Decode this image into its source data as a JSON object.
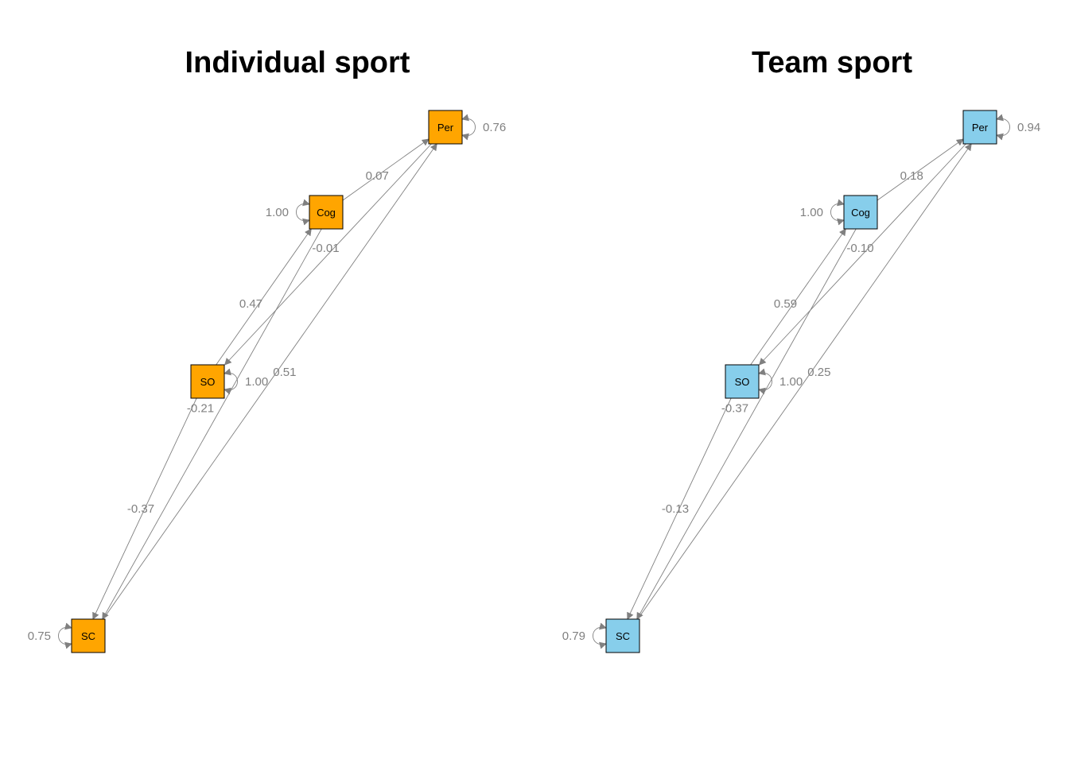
{
  "panels": [
    {
      "title": "Individual sport",
      "node_color": "#FFA500",
      "nodes": {
        "Per": "Per",
        "Cog": "Cog",
        "SO": "SO",
        "SC": "SC"
      },
      "paths": [
        {
          "from": "Cog",
          "to": "Per",
          "label": "0.07"
        },
        {
          "from": "Per",
          "to": "SO",
          "label": "-0.01"
        },
        {
          "from": "SO",
          "to": "Cog",
          "label": "0.47"
        },
        {
          "from": "SC",
          "to": "Per",
          "label": "0.51"
        },
        {
          "from": "Cog",
          "to": "SC",
          "label": "-0.21"
        },
        {
          "from": "SO",
          "to": "SC",
          "label": "-0.37"
        }
      ],
      "variances": {
        "Per": "0.76",
        "Cog": "1.00",
        "SO": "1.00",
        "SC": "0.75"
      }
    },
    {
      "title": "Team sport",
      "node_color": "#87CEEB",
      "nodes": {
        "Per": "Per",
        "Cog": "Cog",
        "SO": "SO",
        "SC": "SC"
      },
      "paths": [
        {
          "from": "Cog",
          "to": "Per",
          "label": "0.18"
        },
        {
          "from": "Per",
          "to": "SO",
          "label": "-0.10"
        },
        {
          "from": "SO",
          "to": "Cog",
          "label": "0.59"
        },
        {
          "from": "SC",
          "to": "Per",
          "label": "0.25"
        },
        {
          "from": "Cog",
          "to": "SC",
          "label": "-0.37"
        },
        {
          "from": "SO",
          "to": "SC",
          "label": "-0.13"
        }
      ],
      "variances": {
        "Per": "0.94",
        "Cog": "1.00",
        "SO": "1.00",
        "SC": "0.79"
      }
    }
  ],
  "edge_color": "#808080"
}
